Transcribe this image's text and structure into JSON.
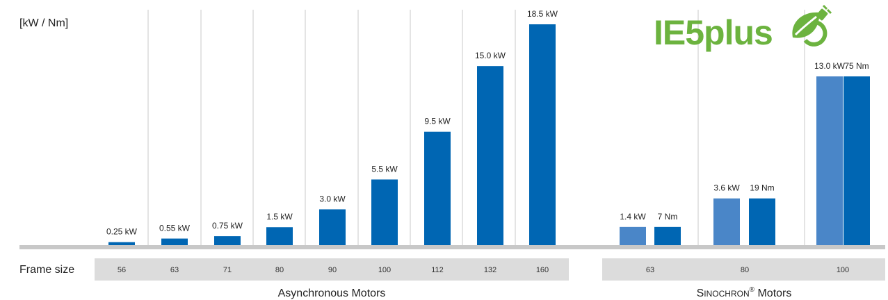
{
  "chart_data": {
    "type": "bar",
    "unit_label": "[kW / Nm]",
    "frame_size_label": "Frame size",
    "logo_text": "IE5plus",
    "colors": {
      "power": "#0066b3",
      "power_light": "#4a86c8",
      "torque": "#0066b3",
      "baseline": "#c8c8c8",
      "frame_band": "#dcdcdc",
      "logo": "#6cb33f"
    },
    "asynchronous": {
      "name": "Asynchronous Motors",
      "categories": [
        "56",
        "63",
        "71",
        "80",
        "90",
        "100",
        "112",
        "132",
        "160"
      ],
      "values": [
        0.25,
        0.55,
        0.75,
        1.5,
        3.0,
        5.5,
        9.5,
        15.0,
        18.5
      ],
      "labels": [
        "0.25 kW",
        "0.55 kW",
        "0.75 kW",
        "1.5 kW",
        "3.0 kW",
        "5.5 kW",
        "9.5 kW",
        "15.0 kW",
        "18.5 kW"
      ]
    },
    "sinochron": {
      "name_prefix": "Sinochron",
      "name_suffix": " Motors",
      "registered_mark": "®",
      "categories": [
        "63",
        "80",
        "100"
      ],
      "power_values": [
        1.4,
        3.6,
        13.0
      ],
      "power_labels": [
        "1.4 kW",
        "3.6 kW",
        "13.0 kW"
      ],
      "torque_values": [
        7,
        19,
        75
      ],
      "torque_labels": [
        "7 Nm",
        "19 Nm",
        "75 Nm"
      ]
    }
  }
}
